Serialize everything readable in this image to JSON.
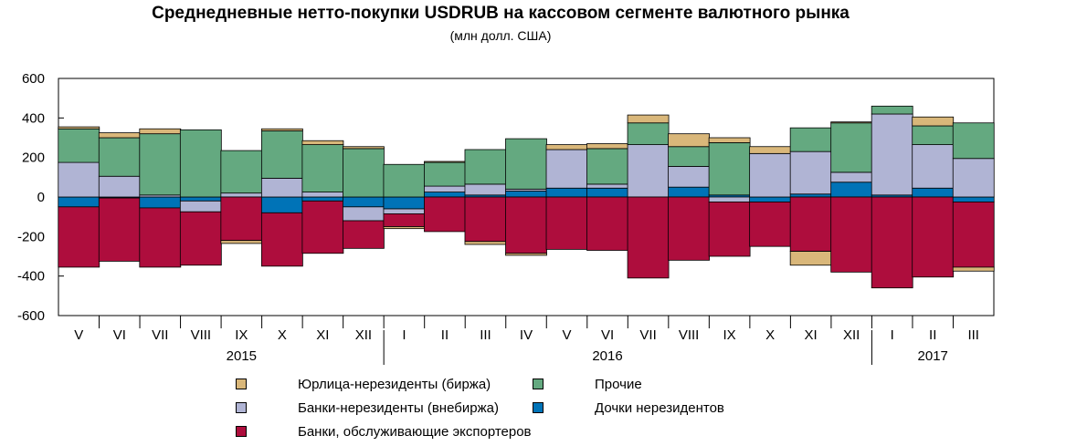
{
  "chart_data": {
    "type": "bar",
    "stacked": true,
    "title": "Среднедневные нетто-покупки USDRUB на кассовом сегменте валютного рынка",
    "subtitle": "(млн долл. США)",
    "xlabel": "",
    "ylabel": "",
    "ylim": [
      -600,
      600
    ],
    "yticks": [
      600,
      400,
      200,
      0,
      -200,
      -400,
      -600
    ],
    "grid": false,
    "legend_position": "bottom",
    "categories": [
      "V",
      "VI",
      "VII",
      "VIII",
      "IX",
      "X",
      "XI",
      "XII",
      "I",
      "II",
      "III",
      "IV",
      "V",
      "VI",
      "VII",
      "VIII",
      "IX",
      "X",
      "XI",
      "XII",
      "I",
      "II",
      "III"
    ],
    "year_labels": [
      {
        "label": "2015",
        "at_category": 4
      },
      {
        "label": "2016",
        "at_category": 13
      },
      {
        "label": "2017",
        "at_category": 21
      }
    ],
    "year_separators_after": [
      7,
      19
    ],
    "series": [
      {
        "name": "Дочки нерезидентов",
        "color": "#0073b7",
        "values": [
          -50,
          -5,
          -55,
          -20,
          0,
          -80,
          -20,
          -50,
          -60,
          25,
          10,
          30,
          45,
          45,
          0,
          50,
          10,
          -25,
          15,
          75,
          10,
          45,
          -25
        ]
      },
      {
        "name": "Банки-нерезиденты (внебиржа)",
        "color": "#b0b4d4",
        "values": [
          175,
          105,
          10,
          -55,
          20,
          95,
          25,
          -70,
          -25,
          30,
          55,
          10,
          195,
          20,
          265,
          105,
          -25,
          220,
          215,
          50,
          410,
          220,
          195
        ]
      },
      {
        "name": "Банки, обслуживающие экспортеров",
        "color": "#ae0d3d",
        "values": [
          -305,
          -320,
          -300,
          -270,
          -220,
          -270,
          -265,
          -140,
          -65,
          -175,
          -225,
          -285,
          -265,
          -270,
          -410,
          -320,
          -275,
          -225,
          -275,
          -380,
          -460,
          -405,
          -330
        ]
      },
      {
        "name": "Прочие",
        "color": "#64a980",
        "values": [
          170,
          195,
          310,
          340,
          215,
          240,
          240,
          245,
          165,
          120,
          175,
          255,
          0,
          180,
          110,
          100,
          265,
          0,
          120,
          250,
          40,
          95,
          180
        ]
      },
      {
        "name": "Юрлица-нерезиденты (биржа)",
        "color": "#d9b77a",
        "values": [
          10,
          25,
          25,
          0,
          -15,
          10,
          20,
          10,
          -10,
          5,
          -15,
          -10,
          25,
          25,
          40,
          65,
          25,
          35,
          -70,
          5,
          0,
          45,
          -20
        ]
      }
    ]
  },
  "legend": [
    {
      "label": "Юрлица-нерезиденты (биржа)",
      "color": "#d9b77a"
    },
    {
      "label": "Прочие",
      "color": "#64a980"
    },
    {
      "label": "Банки-нерезиденты (внебиржа)",
      "color": "#b0b4d4"
    },
    {
      "label": "Дочки нерезидентов",
      "color": "#0073b7"
    },
    {
      "label": "Банки, обслуживающие экспортеров",
      "color": "#ae0d3d"
    }
  ]
}
